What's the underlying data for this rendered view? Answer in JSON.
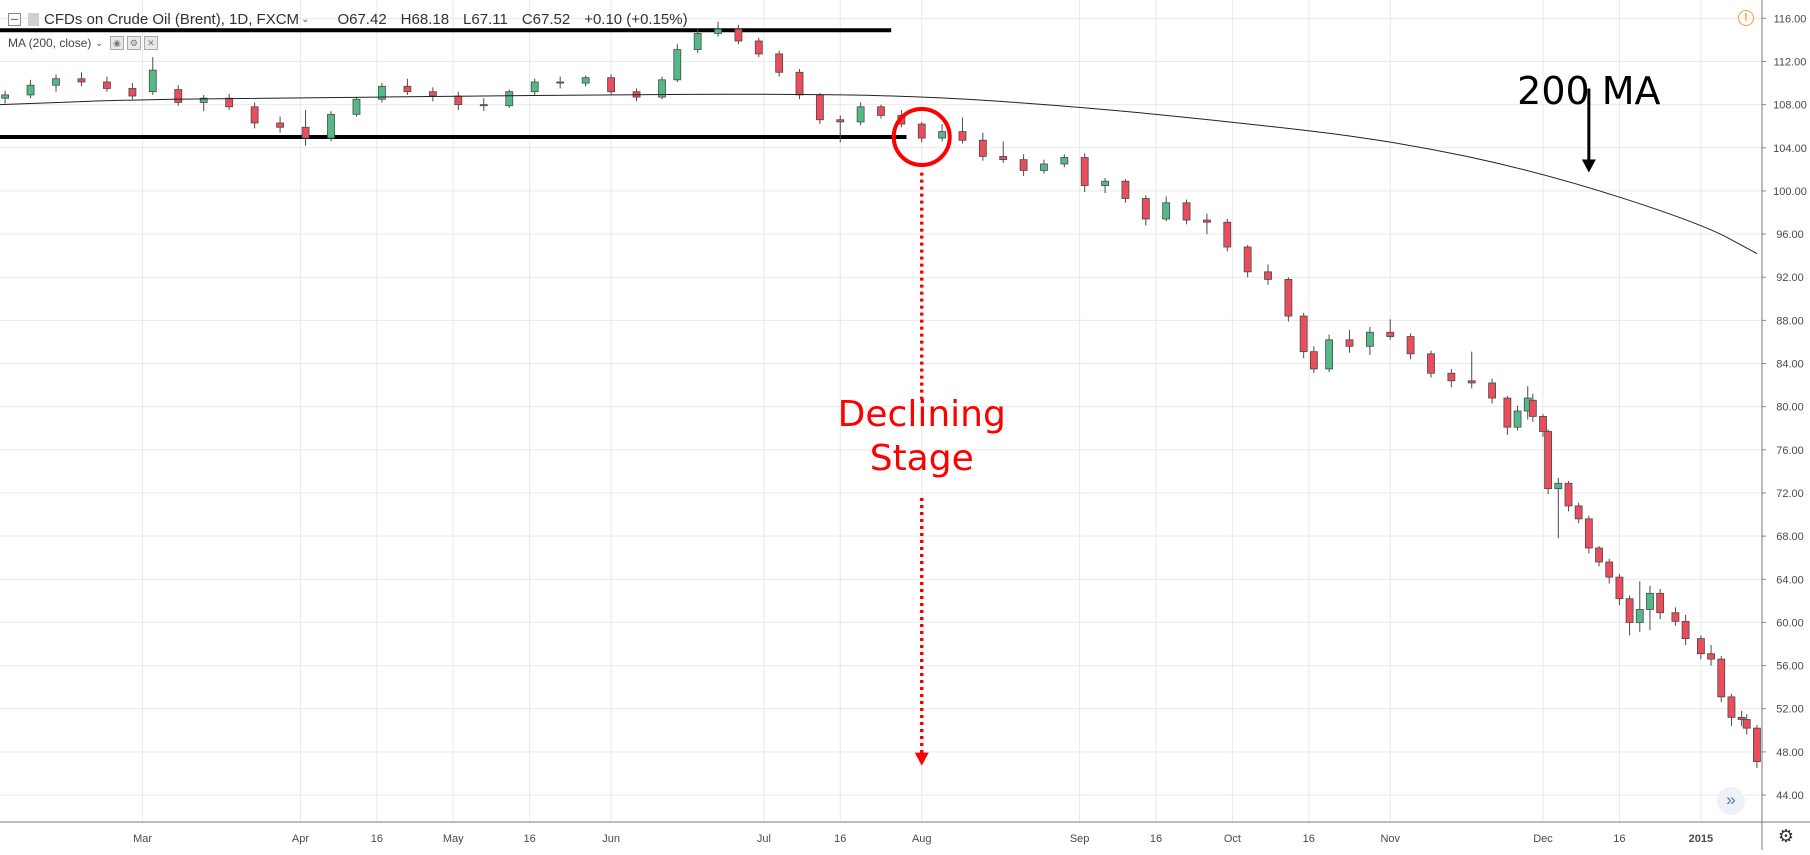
{
  "chart_data": {
    "type": "candlestick",
    "legend": {
      "symbol": "CFDs on Crude Oil (Brent), 1D, FXCM",
      "open": "O67.42",
      "high": "H68.18",
      "low": "L67.11",
      "close": "C67.52",
      "change": "+0.10 (+0.15%)"
    },
    "indicator_label": "MA (200, close)",
    "y_axis": {
      "ticks": [
        "116.00",
        "112.00",
        "108.00",
        "104.00",
        "100.00",
        "96.00",
        "92.00",
        "88.00",
        "84.00",
        "80.00",
        "76.00",
        "72.00",
        "68.00",
        "64.00",
        "60.00",
        "56.00",
        "52.00",
        "48.00",
        "44.00"
      ],
      "ylim": [
        41.5,
        117.7
      ]
    },
    "x_axis": {
      "labels": [
        "Mar",
        "Apr",
        "16",
        "May",
        "16",
        "Jun",
        "Jul",
        "16",
        "Aug",
        "Sep",
        "16",
        "Oct",
        "16",
        "Nov",
        "Dec",
        "16",
        "2015"
      ],
      "date_range": [
        "2014-02-01",
        "2015-01-13"
      ]
    },
    "candles": [
      {
        "date": "2014-02-02",
        "open": 108.6,
        "high": 109.3,
        "low": 108.1,
        "close": 108.9
      },
      {
        "date": "2014-02-07",
        "open": 108.9,
        "high": 110.3,
        "low": 108.6,
        "close": 109.8
      },
      {
        "date": "2014-02-12",
        "open": 109.8,
        "high": 110.8,
        "low": 109.2,
        "close": 110.4
      },
      {
        "date": "2014-02-17",
        "open": 110.4,
        "high": 111.0,
        "low": 109.7,
        "close": 110.1
      },
      {
        "date": "2014-02-22",
        "open": 110.1,
        "high": 110.6,
        "low": 109.2,
        "close": 109.5
      },
      {
        "date": "2014-02-27",
        "open": 109.5,
        "high": 110.0,
        "low": 108.5,
        "close": 108.8
      },
      {
        "date": "2014-03-03",
        "open": 109.2,
        "high": 112.4,
        "low": 108.9,
        "close": 111.2
      },
      {
        "date": "2014-03-08",
        "open": 109.4,
        "high": 109.8,
        "low": 107.9,
        "close": 108.2
      },
      {
        "date": "2014-03-13",
        "open": 108.2,
        "high": 108.9,
        "low": 107.4,
        "close": 108.6
      },
      {
        "date": "2014-03-18",
        "open": 108.6,
        "high": 109.0,
        "low": 107.5,
        "close": 107.8
      },
      {
        "date": "2014-03-23",
        "open": 107.8,
        "high": 108.2,
        "low": 105.8,
        "close": 106.3
      },
      {
        "date": "2014-03-28",
        "open": 106.3,
        "high": 106.9,
        "low": 105.4,
        "close": 105.9
      },
      {
        "date": "2014-04-02",
        "open": 105.9,
        "high": 107.5,
        "low": 104.2,
        "close": 104.9
      },
      {
        "date": "2014-04-07",
        "open": 104.9,
        "high": 107.4,
        "low": 104.6,
        "close": 107.1
      },
      {
        "date": "2014-04-12",
        "open": 107.1,
        "high": 108.7,
        "low": 106.9,
        "close": 108.5
      },
      {
        "date": "2014-04-17",
        "open": 108.5,
        "high": 110.0,
        "low": 108.2,
        "close": 109.7
      },
      {
        "date": "2014-04-22",
        "open": 109.7,
        "high": 110.4,
        "low": 108.9,
        "close": 109.2
      },
      {
        "date": "2014-04-27",
        "open": 109.2,
        "high": 109.6,
        "low": 108.3,
        "close": 108.8
      },
      {
        "date": "2014-05-02",
        "open": 108.8,
        "high": 109.2,
        "low": 107.5,
        "close": 108.0
      },
      {
        "date": "2014-05-07",
        "open": 108.0,
        "high": 108.6,
        "low": 107.4,
        "close": 107.9
      },
      {
        "date": "2014-05-12",
        "open": 107.9,
        "high": 109.4,
        "low": 107.7,
        "close": 109.2
      },
      {
        "date": "2014-05-17",
        "open": 109.2,
        "high": 110.4,
        "low": 108.9,
        "close": 110.1
      },
      {
        "date": "2014-05-22",
        "open": 110.1,
        "high": 110.6,
        "low": 109.5,
        "close": 110.0
      },
      {
        "date": "2014-05-27",
        "open": 110.0,
        "high": 110.7,
        "low": 109.7,
        "close": 110.5
      },
      {
        "date": "2014-06-01",
        "open": 110.5,
        "high": 110.8,
        "low": 108.9,
        "close": 109.2
      },
      {
        "date": "2014-06-06",
        "open": 109.2,
        "high": 109.5,
        "low": 108.3,
        "close": 108.7
      },
      {
        "date": "2014-06-11",
        "open": 108.7,
        "high": 110.6,
        "low": 108.5,
        "close": 110.3
      },
      {
        "date": "2014-06-14",
        "open": 110.3,
        "high": 113.6,
        "low": 110.1,
        "close": 113.1
      },
      {
        "date": "2014-06-18",
        "open": 113.1,
        "high": 115.1,
        "low": 112.8,
        "close": 114.6
      },
      {
        "date": "2014-06-22",
        "open": 114.6,
        "high": 115.7,
        "low": 114.3,
        "close": 115.0
      },
      {
        "date": "2014-06-26",
        "open": 115.0,
        "high": 115.4,
        "low": 113.6,
        "close": 113.9
      },
      {
        "date": "2014-06-30",
        "open": 113.9,
        "high": 114.2,
        "low": 112.4,
        "close": 112.7
      },
      {
        "date": "2014-07-04",
        "open": 112.7,
        "high": 113.0,
        "low": 110.6,
        "close": 111.0
      },
      {
        "date": "2014-07-08",
        "open": 111.0,
        "high": 111.3,
        "low": 108.5,
        "close": 108.9
      },
      {
        "date": "2014-07-12",
        "open": 108.9,
        "high": 109.1,
        "low": 106.2,
        "close": 106.6
      },
      {
        "date": "2014-07-16",
        "open": 106.6,
        "high": 107.0,
        "low": 104.5,
        "close": 106.4
      },
      {
        "date": "2014-07-20",
        "open": 106.4,
        "high": 108.2,
        "low": 106.1,
        "close": 107.8
      },
      {
        "date": "2014-07-24",
        "open": 107.8,
        "high": 108.0,
        "low": 106.7,
        "close": 107.0
      },
      {
        "date": "2014-07-28",
        "open": 107.0,
        "high": 107.5,
        "low": 105.9,
        "close": 106.2
      },
      {
        "date": "2014-08-01",
        "open": 106.2,
        "high": 106.4,
        "low": 104.5,
        "close": 104.9
      },
      {
        "date": "2014-08-05",
        "open": 104.9,
        "high": 106.2,
        "low": 104.6,
        "close": 105.5
      },
      {
        "date": "2014-08-09",
        "open": 105.5,
        "high": 106.8,
        "low": 104.4,
        "close": 104.7
      },
      {
        "date": "2014-08-13",
        "open": 104.7,
        "high": 105.4,
        "low": 102.8,
        "close": 103.2
      },
      {
        "date": "2014-08-17",
        "open": 103.2,
        "high": 104.6,
        "low": 102.6,
        "close": 102.9
      },
      {
        "date": "2014-08-21",
        "open": 102.9,
        "high": 103.4,
        "low": 101.4,
        "close": 101.9
      },
      {
        "date": "2014-08-25",
        "open": 101.9,
        "high": 102.9,
        "low": 101.6,
        "close": 102.5
      },
      {
        "date": "2014-08-29",
        "open": 102.5,
        "high": 103.4,
        "low": 102.2,
        "close": 103.1
      },
      {
        "date": "2014-09-02",
        "open": 103.1,
        "high": 103.5,
        "low": 99.9,
        "close": 100.5
      },
      {
        "date": "2014-09-06",
        "open": 100.5,
        "high": 101.2,
        "low": 99.8,
        "close": 100.9
      },
      {
        "date": "2014-09-10",
        "open": 100.9,
        "high": 101.1,
        "low": 98.9,
        "close": 99.3
      },
      {
        "date": "2014-09-14",
        "open": 99.3,
        "high": 99.6,
        "low": 96.8,
        "close": 97.4
      },
      {
        "date": "2014-09-18",
        "open": 97.4,
        "high": 99.5,
        "low": 97.2,
        "close": 98.9
      },
      {
        "date": "2014-09-22",
        "open": 98.9,
        "high": 99.2,
        "low": 96.9,
        "close": 97.3
      },
      {
        "date": "2014-09-26",
        "open": 97.3,
        "high": 97.9,
        "low": 96.0,
        "close": 97.1
      },
      {
        "date": "2014-09-30",
        "open": 97.1,
        "high": 97.4,
        "low": 94.4,
        "close": 94.8
      },
      {
        "date": "2014-10-04",
        "open": 94.8,
        "high": 95.0,
        "low": 92.0,
        "close": 92.5
      },
      {
        "date": "2014-10-08",
        "open": 92.5,
        "high": 93.2,
        "low": 91.3,
        "close": 91.8
      },
      {
        "date": "2014-10-12",
        "open": 91.8,
        "high": 92.0,
        "low": 87.9,
        "close": 88.4
      },
      {
        "date": "2014-10-15",
        "open": 88.4,
        "high": 88.7,
        "low": 84.5,
        "close": 85.1
      },
      {
        "date": "2014-10-17",
        "open": 85.1,
        "high": 85.6,
        "low": 83.1,
        "close": 83.5
      },
      {
        "date": "2014-10-20",
        "open": 83.5,
        "high": 86.7,
        "low": 83.2,
        "close": 86.2
      },
      {
        "date": "2014-10-24",
        "open": 86.2,
        "high": 87.1,
        "low": 85.0,
        "close": 85.6
      },
      {
        "date": "2014-10-28",
        "open": 85.6,
        "high": 87.4,
        "low": 84.8,
        "close": 86.9
      },
      {
        "date": "2014-11-01",
        "open": 86.9,
        "high": 88.1,
        "low": 86.2,
        "close": 86.5
      },
      {
        "date": "2014-11-05",
        "open": 86.5,
        "high": 86.8,
        "low": 84.4,
        "close": 84.9
      },
      {
        "date": "2014-11-09",
        "open": 84.9,
        "high": 85.2,
        "low": 82.7,
        "close": 83.1
      },
      {
        "date": "2014-11-13",
        "open": 83.1,
        "high": 83.5,
        "low": 81.8,
        "close": 82.4
      },
      {
        "date": "2014-11-17",
        "open": 82.4,
        "high": 85.1,
        "low": 81.7,
        "close": 82.2
      },
      {
        "date": "2014-11-21",
        "open": 82.2,
        "high": 82.6,
        "low": 80.3,
        "close": 80.8
      },
      {
        "date": "2014-11-24",
        "open": 80.8,
        "high": 81.0,
        "low": 77.4,
        "close": 78.1
      },
      {
        "date": "2014-11-26",
        "open": 78.1,
        "high": 80.1,
        "low": 77.8,
        "close": 79.6
      },
      {
        "date": "2014-11-28",
        "open": 79.6,
        "high": 81.9,
        "low": 78.8,
        "close": 80.8
      },
      {
        "date": "2014-11-29",
        "open": 80.6,
        "high": 81.2,
        "low": 78.6,
        "close": 79.1
      },
      {
        "date": "2014-12-01",
        "open": 79.1,
        "high": 79.3,
        "low": 77.2,
        "close": 77.7
      },
      {
        "date": "2014-12-02",
        "open": 77.7,
        "high": 77.9,
        "low": 71.9,
        "close": 72.4
      },
      {
        "date": "2014-12-04",
        "open": 72.4,
        "high": 73.4,
        "low": 67.8,
        "close": 72.9
      },
      {
        "date": "2014-12-06",
        "open": 72.9,
        "high": 73.1,
        "low": 70.3,
        "close": 70.8
      },
      {
        "date": "2014-12-08",
        "open": 70.8,
        "high": 71.1,
        "low": 69.2,
        "close": 69.6
      },
      {
        "date": "2014-12-10",
        "open": 69.6,
        "high": 69.9,
        "low": 66.4,
        "close": 66.9
      },
      {
        "date": "2014-12-12",
        "open": 66.9,
        "high": 67.1,
        "low": 65.2,
        "close": 65.6
      },
      {
        "date": "2014-12-14",
        "open": 65.6,
        "high": 65.9,
        "low": 63.6,
        "close": 64.2
      },
      {
        "date": "2014-12-16",
        "open": 64.2,
        "high": 64.5,
        "low": 61.6,
        "close": 62.2
      },
      {
        "date": "2014-12-18",
        "open": 62.2,
        "high": 62.5,
        "low": 58.8,
        "close": 60.0
      },
      {
        "date": "2014-12-20",
        "open": 60.0,
        "high": 63.8,
        "low": 59.1,
        "close": 61.2
      },
      {
        "date": "2014-12-22",
        "open": 61.2,
        "high": 63.4,
        "low": 59.3,
        "close": 62.7
      },
      {
        "date": "2014-12-24",
        "open": 62.7,
        "high": 63.1,
        "low": 60.3,
        "close": 60.9
      },
      {
        "date": "2014-12-27",
        "open": 60.9,
        "high": 61.4,
        "low": 59.7,
        "close": 60.1
      },
      {
        "date": "2014-12-29",
        "open": 60.1,
        "high": 60.7,
        "low": 57.9,
        "close": 58.5
      },
      {
        "date": "2015-01-01",
        "open": 58.5,
        "high": 58.8,
        "low": 56.6,
        "close": 57.1
      },
      {
        "date": "2015-01-03",
        "open": 57.1,
        "high": 57.9,
        "low": 56.0,
        "close": 56.6
      },
      {
        "date": "2015-01-05",
        "open": 56.6,
        "high": 56.9,
        "low": 52.6,
        "close": 53.1
      },
      {
        "date": "2015-01-07",
        "open": 53.1,
        "high": 53.4,
        "low": 50.4,
        "close": 51.2
      },
      {
        "date": "2015-01-09",
        "open": 51.2,
        "high": 51.8,
        "low": 50.4,
        "close": 51.0
      },
      {
        "date": "2015-01-10",
        "open": 51.0,
        "high": 51.5,
        "low": 49.6,
        "close": 50.2
      },
      {
        "date": "2015-01-12",
        "open": 50.2,
        "high": 50.5,
        "low": 46.5,
        "close": 47.1
      }
    ],
    "moving_average_200": [
      {
        "date": "2014-02-01",
        "value": 108.0
      },
      {
        "date": "2014-03-01",
        "value": 108.5
      },
      {
        "date": "2014-04-01",
        "value": 108.6
      },
      {
        "date": "2014-05-01",
        "value": 108.8
      },
      {
        "date": "2014-06-01",
        "value": 108.9
      },
      {
        "date": "2014-07-01",
        "value": 109.0
      },
      {
        "date": "2014-08-01",
        "value": 108.8
      },
      {
        "date": "2014-09-01",
        "value": 107.8
      },
      {
        "date": "2014-10-01",
        "value": 106.4
      },
      {
        "date": "2014-11-01",
        "value": 104.7
      },
      {
        "date": "2014-12-01",
        "value": 101.7
      },
      {
        "date": "2015-01-01",
        "value": 97.0
      },
      {
        "date": "2015-01-12",
        "value": 94.2
      }
    ],
    "horizontal_lines": [
      {
        "value": 114.9,
        "from": "2014-02-01",
        "to": "2014-07-26"
      },
      {
        "value": 105.0,
        "from": "2014-02-01",
        "to": "2014-07-29"
      }
    ],
    "annotations": {
      "stage_text": [
        "Declining",
        "Stage"
      ],
      "ma_text": "200 MA",
      "breakdown_circle": {
        "date": "2014-08-01",
        "value": 105.0
      },
      "stage_arrow": {
        "date": "2014-08-01",
        "from": 101.7,
        "to": 47.0
      },
      "ma_arrow": {
        "date": "2014-12-10",
        "from": 109.5,
        "to": 101.8
      }
    },
    "colors": {
      "up": "#53b987",
      "down": "#eb4d5c",
      "candle_border": "#4a4a4a",
      "ma_line": "#222222",
      "annotation_red": "#ff0000",
      "annotation_black": "#000000",
      "grid": "#e9e9e9",
      "alert": "#f29b38"
    }
  },
  "ui": {
    "scroll_right_icon": "double-chevron-right-icon",
    "settings_icon": "gear-icon",
    "alert_icon": "alert-icon"
  }
}
